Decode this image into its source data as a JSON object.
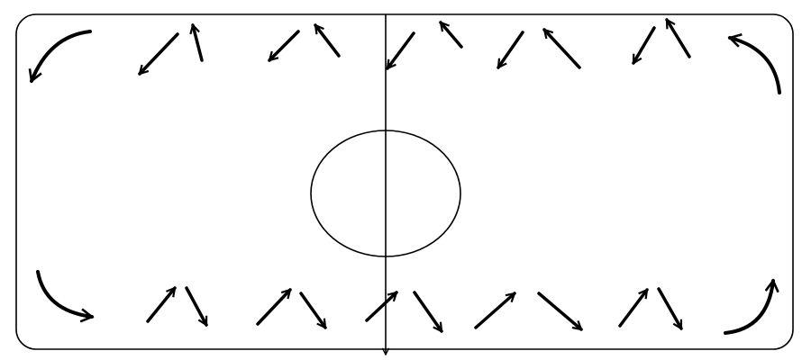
{
  "diagram": {
    "stroke_color": "#000000",
    "background_color": "#ffffff",
    "corner_arrows": [
      {
        "corner": "top-left",
        "icon": "curved-arrow-down-left-icon"
      },
      {
        "corner": "top-right",
        "icon": "curved-arrow-up-left-icon"
      },
      {
        "corner": "bottom-left",
        "icon": "curved-arrow-down-right-icon"
      },
      {
        "corner": "bottom-right",
        "icon": "curved-arrow-up-right-icon"
      }
    ],
    "top_row_arrows": [
      "arrow-down-left-icon",
      "arrow-up-icon",
      "arrow-down-left-icon",
      "arrow-up-left-icon",
      "arrow-down-left-icon",
      "arrow-up-left-icon",
      "arrow-down-left-icon",
      "arrow-up-left-icon",
      "arrow-down-left-icon",
      "arrow-up-left-icon"
    ],
    "bottom_row_arrows": [
      "arrow-up-right-icon",
      "arrow-down-right-icon",
      "arrow-up-right-icon",
      "arrow-down-right-icon",
      "arrow-up-right-icon",
      "arrow-down-right-icon",
      "arrow-up-right-icon",
      "arrow-down-right-icon",
      "arrow-up-right-icon",
      "arrow-down-right-icon"
    ]
  }
}
